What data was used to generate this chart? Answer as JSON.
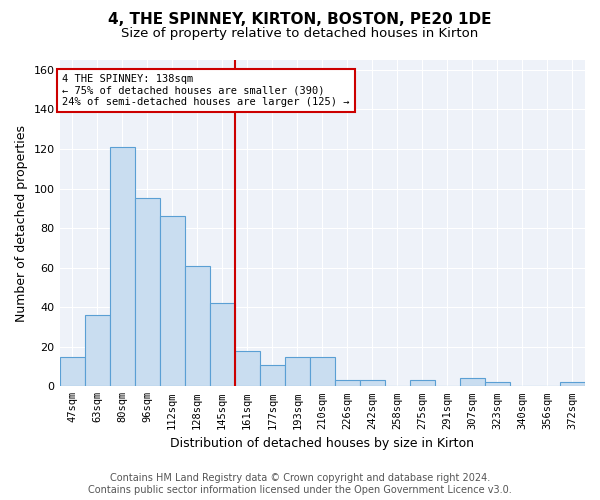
{
  "title": "4, THE SPINNEY, KIRTON, BOSTON, PE20 1DE",
  "subtitle": "Size of property relative to detached houses in Kirton",
  "xlabel": "Distribution of detached houses by size in Kirton",
  "ylabel": "Number of detached properties",
  "categories": [
    "47sqm",
    "63sqm",
    "80sqm",
    "96sqm",
    "112sqm",
    "128sqm",
    "145sqm",
    "161sqm",
    "177sqm",
    "193sqm",
    "210sqm",
    "226sqm",
    "242sqm",
    "258sqm",
    "275sqm",
    "291sqm",
    "307sqm",
    "323sqm",
    "340sqm",
    "356sqm",
    "372sqm"
  ],
  "values": [
    15,
    36,
    121,
    95,
    86,
    61,
    42,
    18,
    11,
    15,
    15,
    3,
    3,
    0,
    3,
    0,
    4,
    2,
    0,
    0,
    2
  ],
  "bar_color": "#c9ddf0",
  "bar_edge_color": "#5a9fd4",
  "annotation_line1": "4 THE SPINNEY: 138sqm",
  "annotation_line2": "← 75% of detached houses are smaller (390)",
  "annotation_line3": "24% of semi-detached houses are larger (125) →",
  "annotation_box_color": "#ffffff",
  "annotation_box_edge": "#cc0000",
  "vline_color": "#cc0000",
  "ylim": [
    0,
    165
  ],
  "yticks": [
    0,
    20,
    40,
    60,
    80,
    100,
    120,
    140,
    160
  ],
  "footer_line1": "Contains HM Land Registry data © Crown copyright and database right 2024.",
  "footer_line2": "Contains public sector information licensed under the Open Government Licence v3.0.",
  "title_fontsize": 11,
  "subtitle_fontsize": 9.5,
  "xlabel_fontsize": 9,
  "ylabel_fontsize": 9,
  "footer_fontsize": 7,
  "tick_fontsize": 7.5,
  "ytick_fontsize": 8,
  "annot_fontsize": 7.5,
  "vline_pos": 6.5,
  "bg_color": "#eef2f9"
}
